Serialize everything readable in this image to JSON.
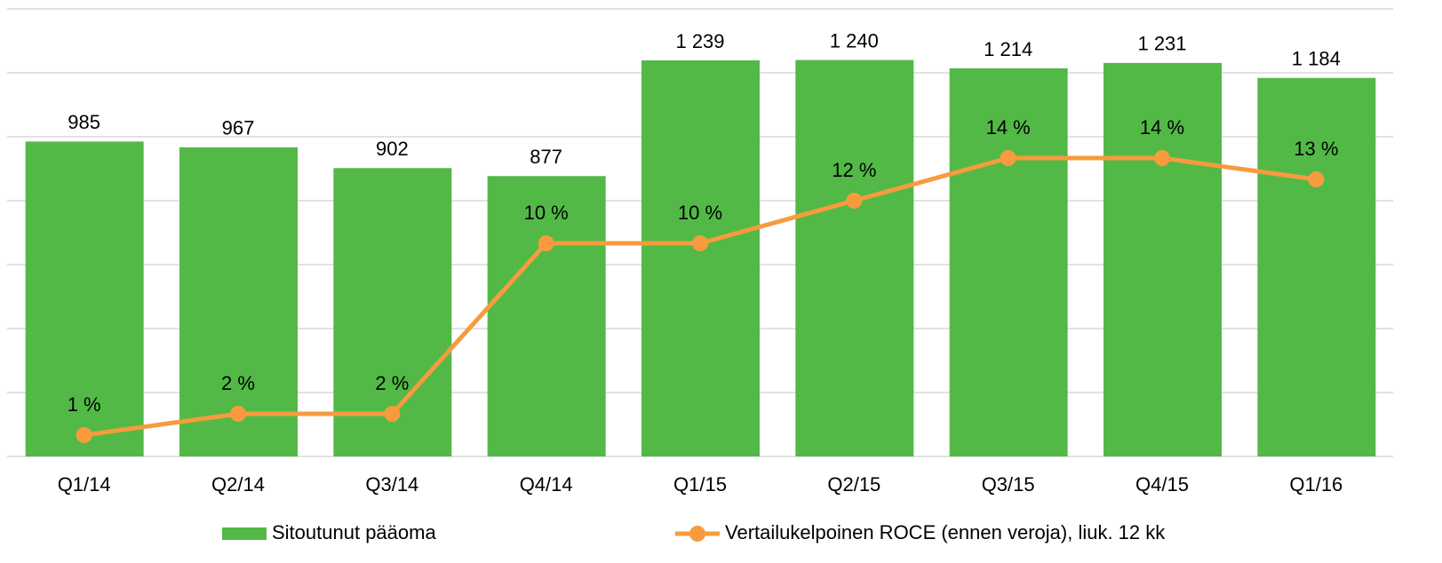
{
  "chart_data": {
    "type": "bar_line",
    "categories": [
      "Q1/14",
      "Q2/14",
      "Q3/14",
      "Q4/14",
      "Q1/15",
      "Q2/15",
      "Q3/15",
      "Q4/15",
      "Q1/16"
    ],
    "series": [
      {
        "name": "Sitoutunut pääoma",
        "type": "bar",
        "color": "#52b947",
        "values": [
          985,
          967,
          902,
          877,
          1239,
          1240,
          1214,
          1231,
          1184
        ],
        "value_labels": [
          "985",
          "967",
          "902",
          "877",
          "1 239",
          "1 240",
          "1 214",
          "1 231",
          "1 184"
        ]
      },
      {
        "name": "Vertailukelpoinen ROCE (ennen veroja), liuk. 12 kk",
        "type": "line",
        "axis": "y2",
        "color": "#f79b3e",
        "values": [
          1,
          2,
          2,
          10,
          10,
          12,
          14,
          14,
          13
        ],
        "value_labels": [
          "1 %",
          "2 %",
          "2 %",
          "10 %",
          "10 %",
          "12 %",
          "14 %",
          "14 %",
          "13 %"
        ]
      }
    ],
    "ylim": [
      0,
      1400
    ],
    "yticks": [
      0,
      200,
      400,
      600,
      800,
      1000,
      1200,
      1400
    ],
    "y2lim": [
      0,
      21
    ],
    "grid": true,
    "legend": "bottom"
  }
}
